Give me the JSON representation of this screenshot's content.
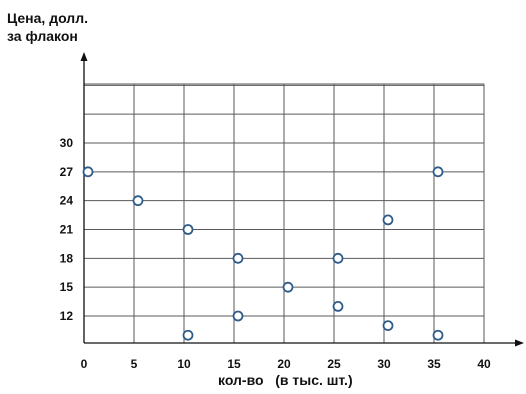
{
  "chart_data": {
    "type": "scatter",
    "ylabel_lines": [
      "Цена, долл.",
      "за флакон"
    ],
    "xlabel": "кол-во   (в тыс. шт.)",
    "x_ticks": [
      0,
      5,
      10,
      15,
      20,
      25,
      30,
      35,
      40
    ],
    "y_ticks": [
      12,
      15,
      18,
      21,
      24,
      27,
      30
    ],
    "xlim": [
      0,
      40
    ],
    "ylim": [
      9.5,
      35
    ],
    "grid": true,
    "marker": "hollow-circle",
    "colors": {
      "marker_stroke": "#2f5c8a",
      "grid": "#5a5a5a",
      "axis": "#111111",
      "text": "#111111"
    },
    "points": [
      {
        "x": 0,
        "y": 27
      },
      {
        "x": 5,
        "y": 24
      },
      {
        "x": 10,
        "y": 21
      },
      {
        "x": 10,
        "y": 10
      },
      {
        "x": 15,
        "y": 18
      },
      {
        "x": 15,
        "y": 12
      },
      {
        "x": 20,
        "y": 15
      },
      {
        "x": 25,
        "y": 18
      },
      {
        "x": 25,
        "y": 13
      },
      {
        "x": 30,
        "y": 22
      },
      {
        "x": 30,
        "y": 11
      },
      {
        "x": 35,
        "y": 27
      },
      {
        "x": 35,
        "y": 10
      }
    ]
  }
}
